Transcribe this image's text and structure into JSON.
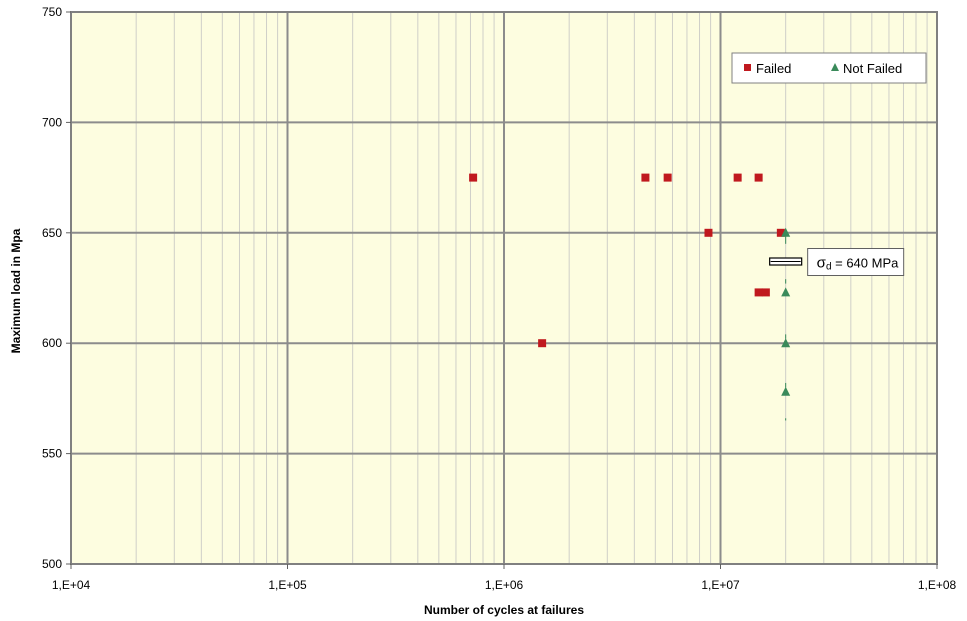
{
  "chart_data": {
    "type": "scatter",
    "xscale": "log",
    "xlim": [
      10000,
      100000000
    ],
    "ylim": [
      500,
      750
    ],
    "xlabel": "Number of cycles at failures",
    "ylabel": "Maximum load in Mpa",
    "x_ticks": [
      {
        "value": 10000,
        "label": "1,E+04"
      },
      {
        "value": 100000,
        "label": "1,E+05"
      },
      {
        "value": 1000000,
        "label": "1,E+06"
      },
      {
        "value": 10000000,
        "label": "1,E+07"
      },
      {
        "value": 100000000,
        "label": "1,E+08"
      }
    ],
    "y_ticks": [
      {
        "value": 500,
        "label": "500"
      },
      {
        "value": 550,
        "label": "550"
      },
      {
        "value": 600,
        "label": "600"
      },
      {
        "value": 650,
        "label": "650"
      },
      {
        "value": 700,
        "label": "700"
      },
      {
        "value": 750,
        "label": "750"
      }
    ],
    "grid": true,
    "legend_position": "top-right",
    "series": [
      {
        "name": "Failed",
        "marker": "square",
        "color": "#c0191e",
        "points": [
          {
            "x": 720000,
            "y": 675
          },
          {
            "x": 4500000,
            "y": 675
          },
          {
            "x": 5700000,
            "y": 675
          },
          {
            "x": 12000000,
            "y": 675
          },
          {
            "x": 15000000,
            "y": 675
          },
          {
            "x": 8800000,
            "y": 650
          },
          {
            "x": 19000000,
            "y": 650
          },
          {
            "x": 15000000,
            "y": 623
          },
          {
            "x": 16200000,
            "y": 623
          },
          {
            "x": 1500000,
            "y": 600
          }
        ]
      },
      {
        "name": "Not Failed",
        "marker": "triangle",
        "color": "#3a8a5a",
        "points": [
          {
            "x": 20000000,
            "y": 650
          },
          {
            "x": 20000000,
            "y": 623
          },
          {
            "x": 20000000,
            "y": 600
          },
          {
            "x": 20000000,
            "y": 578
          }
        ]
      }
    ],
    "annotation": {
      "symbol": "σ",
      "subscript": "d",
      "text": " = 640 MPa",
      "x": 20000000,
      "y": 637
    },
    "colors": {
      "plot_background": "#fdfde0",
      "major_grid": "#8c8c8c",
      "minor_grid": "#cfcfc8",
      "frame": "#808080"
    }
  }
}
